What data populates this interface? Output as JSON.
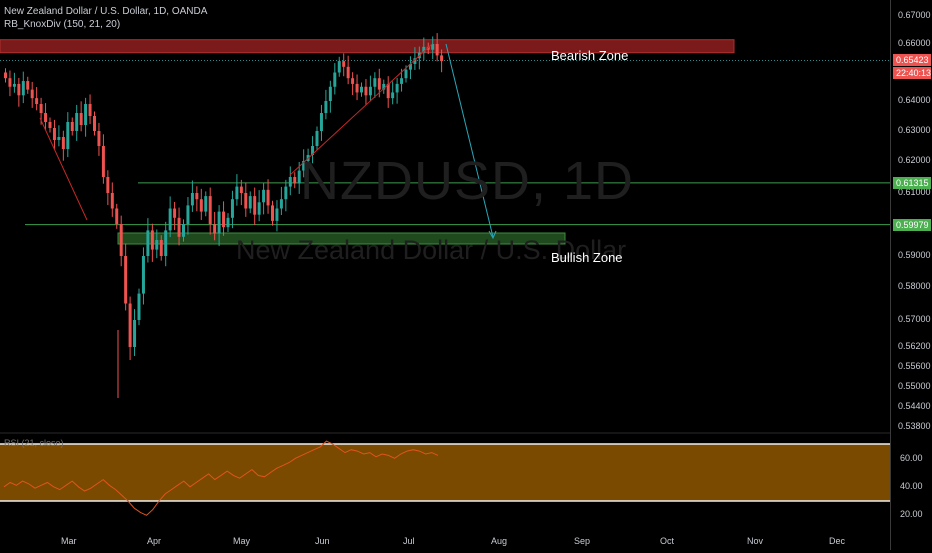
{
  "header": {
    "symbol_line": "New Zealand Dollar / U.S. Dollar, 1D, OANDA",
    "indicator": "RB_KnoxDiv (150, 21, 20)"
  },
  "watermark": {
    "ticker": "NZDUSD, 1D",
    "name": "New Zealand Dollar / U.S. Dollar"
  },
  "annotations": {
    "bearish": "Bearish Zone",
    "bullish": "Bullish  Zone"
  },
  "price_axis": {
    "ticks": [
      "0.67000",
      "0.66000",
      "0.64000",
      "0.63000",
      "0.62000",
      "0.61000",
      "0.59000",
      "0.58000",
      "0.57000",
      "0.56200",
      "0.55600",
      "0.55000",
      "0.54400",
      "0.53800"
    ],
    "current_price": "0.65423",
    "countdown": "22:40:13",
    "level_upper": "0.61315",
    "level_lower": "0.59979",
    "badge_colors": {
      "current": "#ef5350",
      "level": "#4caf50"
    }
  },
  "rsi": {
    "title": "RSI (21, close)",
    "ticks": [
      "60.00",
      "40.00",
      "20.00"
    ],
    "band_color": "#7a4a00"
  },
  "time_axis": {
    "labels": [
      "Mar",
      "Apr",
      "May",
      "Jun",
      "Jul",
      "Aug",
      "Sep",
      "Oct",
      "Nov",
      "Dec"
    ]
  },
  "chart_data": {
    "type": "candlestick",
    "title": "New Zealand Dollar / U.S. Dollar, 1D, OANDA",
    "x_labels": [
      "Mar",
      "Apr",
      "May",
      "Jun",
      "Jul",
      "Aug",
      "Sep",
      "Oct",
      "Nov",
      "Dec"
    ],
    "ylim": [
      0.535,
      0.672
    ],
    "last_price": 0.65423,
    "levels": [
      0.61315,
      0.59979
    ],
    "zones": [
      {
        "name": "Bearish Zone",
        "low": 0.6557,
        "high": 0.6601
      },
      {
        "name": "Bullish  Zone",
        "low": 0.5947,
        "high": 0.5977
      }
    ],
    "closes": [
      0.648,
      0.645,
      0.646,
      0.642,
      0.647,
      0.644,
      0.641,
      0.639,
      0.636,
      0.633,
      0.631,
      0.627,
      0.628,
      0.624,
      0.633,
      0.63,
      0.636,
      0.632,
      0.639,
      0.635,
      0.63,
      0.625,
      0.615,
      0.61,
      0.605,
      0.6,
      0.59,
      0.575,
      0.562,
      0.57,
      0.578,
      0.59,
      0.598,
      0.592,
      0.595,
      0.59,
      0.598,
      0.605,
      0.602,
      0.596,
      0.6,
      0.606,
      0.61,
      0.608,
      0.604,
      0.609,
      0.6,
      0.597,
      0.604,
      0.599,
      0.602,
      0.608,
      0.612,
      0.61,
      0.605,
      0.609,
      0.603,
      0.607,
      0.611,
      0.606,
      0.601,
      0.605,
      0.608,
      0.612,
      0.615,
      0.613,
      0.617,
      0.62,
      0.622,
      0.625,
      0.63,
      0.636,
      0.64,
      0.645,
      0.65,
      0.654,
      0.652,
      0.648,
      0.646,
      0.643,
      0.645,
      0.642,
      0.645,
      0.648,
      0.644,
      0.646,
      0.641,
      0.643,
      0.646,
      0.648,
      0.651,
      0.653,
      0.655,
      0.657,
      0.659,
      0.658,
      0.66,
      0.656,
      0.654
    ],
    "rsi_series": {
      "name": "RSI (21, close)",
      "ylim": [
        15,
        75
      ],
      "band": [
        30,
        70
      ],
      "values": [
        40,
        43,
        41,
        44,
        42,
        39,
        41,
        43,
        40,
        38,
        41,
        44,
        40,
        37,
        39,
        42,
        45,
        41,
        38,
        34,
        30,
        25,
        22,
        20,
        24,
        30,
        35,
        38,
        41,
        44,
        40,
        43,
        46,
        49,
        45,
        48,
        51,
        48,
        46,
        49,
        52,
        48,
        47,
        50,
        53,
        55,
        57,
        60,
        62,
        64,
        66,
        68,
        72,
        70,
        67,
        64,
        66,
        65,
        63,
        64,
        61,
        63,
        62,
        60,
        63,
        65,
        66,
        65,
        63,
        64,
        62
      ]
    }
  }
}
